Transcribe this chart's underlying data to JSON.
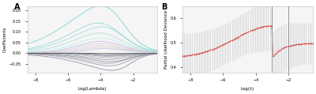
{
  "fig_width": 4.0,
  "fig_height": 1.19,
  "dpi": 100,
  "panel_A": {
    "label": "A",
    "xlabel": "Log(Lambda)",
    "ylabel": "Coefficients",
    "xlim": [
      -8.5,
      -0.5
    ],
    "ylim": [
      -0.09,
      0.22
    ],
    "yticks": [
      -0.05,
      0.0,
      0.05,
      0.1,
      0.15,
      0.2
    ],
    "xticks": [
      -8,
      -6,
      -4,
      -2
    ],
    "bg_color": "#f5f5f5",
    "pos_colors": [
      "#70d0d0",
      "#88d8d8",
      "#99dddd",
      "#aaddcc",
      "#bbeeee",
      "#c0b8d8",
      "#d8c8e8",
      "#e8c8b8",
      "#d0d8e8",
      "#b8c8e0"
    ],
    "neg_colors": [
      "#888899",
      "#9898aa",
      "#a0a8b8",
      "#888888",
      "#9090a0",
      "#b0b0c0",
      "#a8a8b8",
      "#787878",
      "#9898a8",
      "#a0a0b0"
    ],
    "pos_peaks": [
      0.2,
      0.14,
      0.12,
      0.1,
      0.08,
      0.065,
      0.055,
      0.045,
      0.038,
      0.03
    ],
    "pos_peak_x": [
      -2.5,
      -2.8,
      -2.6,
      -2.9,
      -3.0,
      -3.1,
      -3.2,
      -3.3,
      -3.5,
      -3.6
    ],
    "pos_rise_x": [
      -7.5,
      -7.0,
      -6.8,
      -6.5,
      -6.2,
      -6.0,
      -5.8,
      -5.6,
      -5.4,
      -5.2
    ],
    "neg_peaks": [
      -0.07,
      -0.055,
      -0.048,
      -0.04,
      -0.033,
      -0.026,
      -0.02,
      -0.015,
      -0.012,
      -0.008
    ],
    "neg_peak_x": [
      -2.0,
      -2.2,
      -2.4,
      -2.3,
      -2.6,
      -2.8,
      -3.0,
      -3.2,
      -3.5,
      -4.0
    ],
    "neg_rise_x": [
      -6.5,
      -6.2,
      -6.0,
      -5.8,
      -5.5,
      -5.2,
      -5.0,
      -4.8,
      -4.6,
      -4.4
    ]
  },
  "panel_B": {
    "label": "B",
    "xlabel": "Log(λ)",
    "ylabel": "Partial Likelihood Deviance",
    "xlim": [
      -8.5,
      -0.5
    ],
    "ylim": [
      0.38,
      0.65
    ],
    "yticks": [
      0.4,
      0.5,
      0.6
    ],
    "xticks": [
      -8,
      -6,
      -4,
      -2
    ],
    "vline1_x": -3.0,
    "vline2_x": -2.0,
    "bg_color": "#f5f5f5",
    "dot_color": "#cc3333",
    "errorbar_color": "#cccccc"
  }
}
